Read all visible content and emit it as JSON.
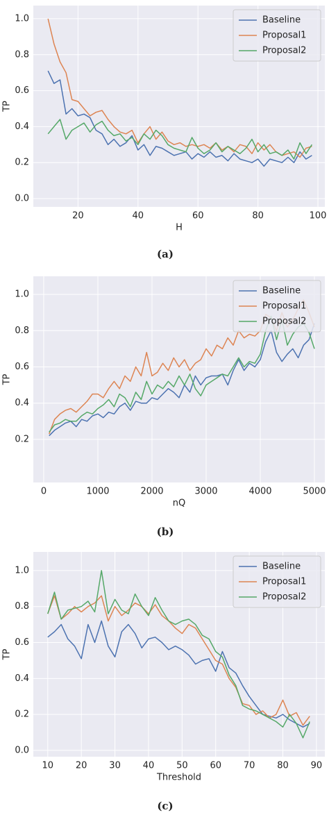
{
  "chart_data": [
    {
      "type": "line",
      "caption": "(a)",
      "x_label": "H",
      "y_label": "TP",
      "grid": true,
      "legend": "upper right",
      "x": [
        10,
        12,
        14,
        16,
        18,
        20,
        22,
        24,
        26,
        28,
        30,
        32,
        34,
        36,
        38,
        40,
        42,
        44,
        46,
        48,
        50,
        52,
        54,
        56,
        58,
        60,
        62,
        64,
        66,
        68,
        70,
        72,
        74,
        76,
        78,
        80,
        82,
        84,
        86,
        88,
        90,
        92,
        94,
        96,
        98
      ],
      "series": [
        {
          "name": "Baseline",
          "color": "#4c72b0",
          "values": [
            0.71,
            0.64,
            0.66,
            0.47,
            0.5,
            0.46,
            0.47,
            0.45,
            0.38,
            0.36,
            0.3,
            0.33,
            0.29,
            0.31,
            0.35,
            0.27,
            0.3,
            0.24,
            0.29,
            0.28,
            0.26,
            0.24,
            0.25,
            0.26,
            0.22,
            0.25,
            0.23,
            0.26,
            0.23,
            0.24,
            0.21,
            0.25,
            0.22,
            0.21,
            0.2,
            0.22,
            0.18,
            0.22,
            0.21,
            0.2,
            0.23,
            0.2,
            0.26,
            0.22,
            0.24
          ]
        },
        {
          "name": "Proposal1",
          "color": "#dd8452",
          "values": [
            1.0,
            0.86,
            0.76,
            0.7,
            0.55,
            0.54,
            0.5,
            0.46,
            0.48,
            0.49,
            0.44,
            0.4,
            0.37,
            0.36,
            0.38,
            0.31,
            0.36,
            0.4,
            0.33,
            0.37,
            0.32,
            0.3,
            0.31,
            0.29,
            0.3,
            0.29,
            0.3,
            0.28,
            0.31,
            0.27,
            0.29,
            0.26,
            0.3,
            0.29,
            0.25,
            0.31,
            0.27,
            0.3,
            0.26,
            0.24,
            0.25,
            0.26,
            0.23,
            0.28,
            0.29
          ]
        },
        {
          "name": "Proposal2",
          "color": "#55a868",
          "values": [
            0.36,
            0.4,
            0.44,
            0.33,
            0.38,
            0.4,
            0.42,
            0.37,
            0.41,
            0.43,
            0.38,
            0.35,
            0.36,
            0.32,
            0.34,
            0.3,
            0.36,
            0.33,
            0.38,
            0.35,
            0.3,
            0.28,
            0.27,
            0.26,
            0.34,
            0.28,
            0.25,
            0.27,
            0.31,
            0.26,
            0.29,
            0.27,
            0.25,
            0.28,
            0.33,
            0.26,
            0.3,
            0.25,
            0.26,
            0.24,
            0.27,
            0.22,
            0.31,
            0.25,
            0.3
          ]
        }
      ],
      "xlim": [
        5.1,
        102.3
      ],
      "xticks": [
        20,
        40,
        60,
        80,
        100
      ],
      "ylim": [
        -0.046,
        1.073
      ],
      "yticks": [
        {
          "value": 0,
          "label": "0.0"
        },
        {
          "value": 0.2,
          "label": "0.2"
        },
        {
          "value": 0.4,
          "label": "0.4"
        },
        {
          "value": 0.6,
          "label": "0.6"
        },
        {
          "value": 0.8,
          "label": "0.8"
        },
        {
          "value": 1,
          "label": "1.0"
        }
      ]
    },
    {
      "type": "line",
      "caption": "(b)",
      "x_label": "nQ",
      "y_label": "TP",
      "grid": true,
      "legend": "upper right",
      "x": [
        100,
        200,
        300,
        400,
        500,
        600,
        700,
        800,
        900,
        1000,
        1100,
        1200,
        1300,
        1400,
        1500,
        1600,
        1700,
        1800,
        1900,
        2000,
        2100,
        2200,
        2300,
        2400,
        2500,
        2600,
        2700,
        2800,
        2900,
        3000,
        3100,
        3200,
        3300,
        3400,
        3500,
        3600,
        3700,
        3800,
        3900,
        4000,
        4100,
        4200,
        4300,
        4400,
        4500,
        4600,
        4700,
        4800,
        4900,
        5000
      ],
      "series": [
        {
          "name": "Baseline",
          "color": "#4c72b0",
          "values": [
            0.22,
            0.25,
            0.27,
            0.29,
            0.3,
            0.27,
            0.31,
            0.3,
            0.33,
            0.34,
            0.32,
            0.35,
            0.34,
            0.38,
            0.4,
            0.36,
            0.41,
            0.4,
            0.4,
            0.43,
            0.42,
            0.45,
            0.48,
            0.46,
            0.43,
            0.5,
            0.46,
            0.55,
            0.5,
            0.54,
            0.55,
            0.55,
            0.56,
            0.5,
            0.58,
            0.64,
            0.58,
            0.62,
            0.6,
            0.64,
            0.74,
            0.8,
            0.68,
            0.63,
            0.67,
            0.7,
            0.65,
            0.72,
            0.75,
            0.84
          ]
        },
        {
          "name": "Proposal1",
          "color": "#dd8452",
          "values": [
            0.23,
            0.31,
            0.34,
            0.36,
            0.37,
            0.35,
            0.38,
            0.41,
            0.45,
            0.45,
            0.43,
            0.48,
            0.52,
            0.48,
            0.55,
            0.52,
            0.6,
            0.55,
            0.68,
            0.55,
            0.57,
            0.62,
            0.58,
            0.65,
            0.6,
            0.64,
            0.58,
            0.62,
            0.64,
            0.7,
            0.66,
            0.72,
            0.7,
            0.76,
            0.72,
            0.8,
            0.76,
            0.78,
            0.77,
            0.8,
            0.89,
            0.87,
            0.8,
            0.9,
            0.82,
            0.86,
            0.92,
            0.97,
            0.9,
            0.82
          ]
        },
        {
          "name": "Proposal2",
          "color": "#55a868",
          "values": [
            0.24,
            0.28,
            0.29,
            0.31,
            0.3,
            0.3,
            0.33,
            0.35,
            0.34,
            0.37,
            0.39,
            0.42,
            0.38,
            0.45,
            0.43,
            0.38,
            0.46,
            0.42,
            0.52,
            0.45,
            0.5,
            0.48,
            0.52,
            0.49,
            0.55,
            0.5,
            0.56,
            0.48,
            0.44,
            0.5,
            0.52,
            0.54,
            0.56,
            0.55,
            0.6,
            0.65,
            0.6,
            0.63,
            0.62,
            0.67,
            0.8,
            0.88,
            0.75,
            0.86,
            0.72,
            0.78,
            0.82,
            0.84,
            0.79,
            0.7
          ]
        }
      ],
      "xlim": [
        -192,
        5192
      ],
      "xticks": [
        0,
        1000,
        2000,
        3000,
        4000,
        5000
      ],
      "ylim": [
        -0.038,
        1.1
      ],
      "yticks": [
        {
          "value": 0.2,
          "label": "0.2"
        },
        {
          "value": 0.4,
          "label": "0.4"
        },
        {
          "value": 0.6,
          "label": "0.6"
        },
        {
          "value": 0.8,
          "label": "0.8"
        },
        {
          "value": 1,
          "label": "1.0"
        }
      ]
    },
    {
      "type": "line",
      "caption": "(c)",
      "x_label": "Threshold",
      "y_label": "TP",
      "grid": true,
      "legend": "upper right",
      "x": [
        10,
        12,
        14,
        16,
        18,
        20,
        22,
        24,
        26,
        28,
        30,
        32,
        34,
        36,
        38,
        40,
        42,
        44,
        46,
        48,
        50,
        52,
        54,
        56,
        58,
        60,
        62,
        64,
        66,
        68,
        70,
        72,
        74,
        76,
        78,
        80,
        82,
        84,
        86,
        88
      ],
      "series": [
        {
          "name": "Baseline",
          "color": "#4c72b0",
          "values": [
            0.63,
            0.66,
            0.7,
            0.62,
            0.58,
            0.51,
            0.7,
            0.6,
            0.72,
            0.58,
            0.52,
            0.66,
            0.7,
            0.65,
            0.57,
            0.62,
            0.63,
            0.6,
            0.56,
            0.58,
            0.56,
            0.53,
            0.48,
            0.5,
            0.51,
            0.44,
            0.55,
            0.46,
            0.43,
            0.36,
            0.3,
            0.25,
            0.2,
            0.19,
            0.18,
            0.2,
            0.17,
            0.15,
            0.13,
            0.15
          ]
        },
        {
          "name": "Proposal1",
          "color": "#dd8452",
          "values": [
            0.76,
            0.86,
            0.73,
            0.76,
            0.8,
            0.77,
            0.8,
            0.82,
            0.86,
            0.72,
            0.8,
            0.75,
            0.78,
            0.82,
            0.8,
            0.76,
            0.81,
            0.75,
            0.72,
            0.68,
            0.65,
            0.7,
            0.68,
            0.62,
            0.56,
            0.5,
            0.48,
            0.4,
            0.35,
            0.26,
            0.25,
            0.2,
            0.22,
            0.18,
            0.2,
            0.28,
            0.19,
            0.21,
            0.14,
            0.19
          ]
        },
        {
          "name": "Proposal2",
          "color": "#55a868",
          "values": [
            0.76,
            0.88,
            0.73,
            0.78,
            0.79,
            0.8,
            0.83,
            0.77,
            1.0,
            0.76,
            0.84,
            0.78,
            0.76,
            0.87,
            0.8,
            0.75,
            0.85,
            0.78,
            0.72,
            0.7,
            0.72,
            0.73,
            0.7,
            0.64,
            0.62,
            0.55,
            0.52,
            0.42,
            0.36,
            0.25,
            0.23,
            0.22,
            0.2,
            0.18,
            0.16,
            0.13,
            0.2,
            0.15,
            0.07,
            0.16
          ]
        }
      ],
      "xlim": [
        5.7,
        92.5
      ],
      "xticks": [
        10,
        20,
        30,
        40,
        50,
        60,
        70,
        80,
        90
      ],
      "ylim": [
        -0.035,
        1.104
      ],
      "yticks": [
        {
          "value": 0,
          "label": "0.0"
        },
        {
          "value": 0.2,
          "label": "0.2"
        },
        {
          "value": 0.4,
          "label": "0.4"
        },
        {
          "value": 0.6,
          "label": "0.6"
        },
        {
          "value": 0.8,
          "label": "0.8"
        },
        {
          "value": 1,
          "label": "1.0"
        }
      ]
    }
  ]
}
